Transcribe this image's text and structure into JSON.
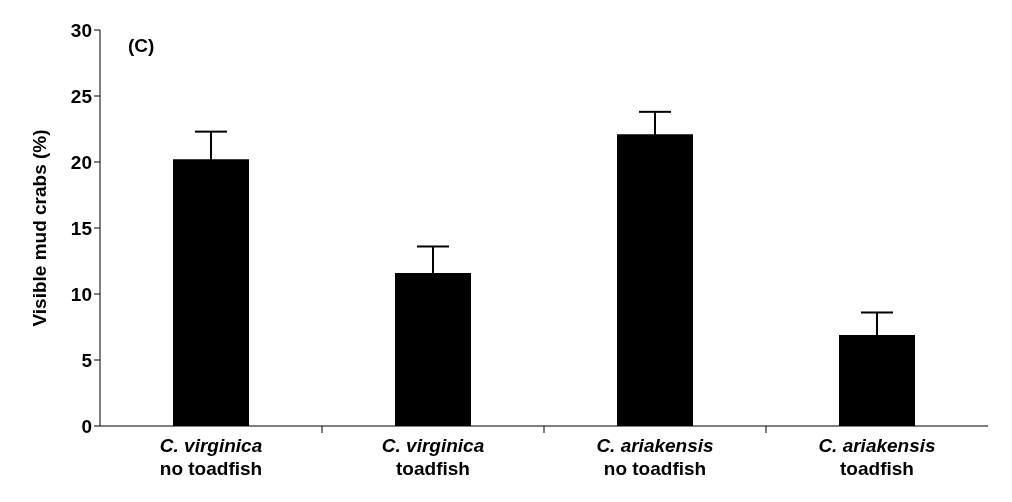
{
  "chart_data": {
    "type": "bar",
    "ylabel": "Visible mud crabs (%)",
    "annotations": [
      "(C)"
    ],
    "categories": [
      "C. virginica\nno toadfish",
      "C. virginica\ntoadfish",
      "C. ariakensis\nno toadfish",
      "C. ariakensis\ntoadfish"
    ],
    "values": [
      20.2,
      11.6,
      22.1,
      6.9
    ],
    "errors": [
      2.1,
      2.0,
      1.7,
      1.7
    ],
    "color": "#000000",
    "ylim": [
      0,
      30
    ],
    "yticks": [
      0,
      5,
      10,
      15,
      20,
      25,
      30
    ],
    "grid": false,
    "legend": false
  }
}
